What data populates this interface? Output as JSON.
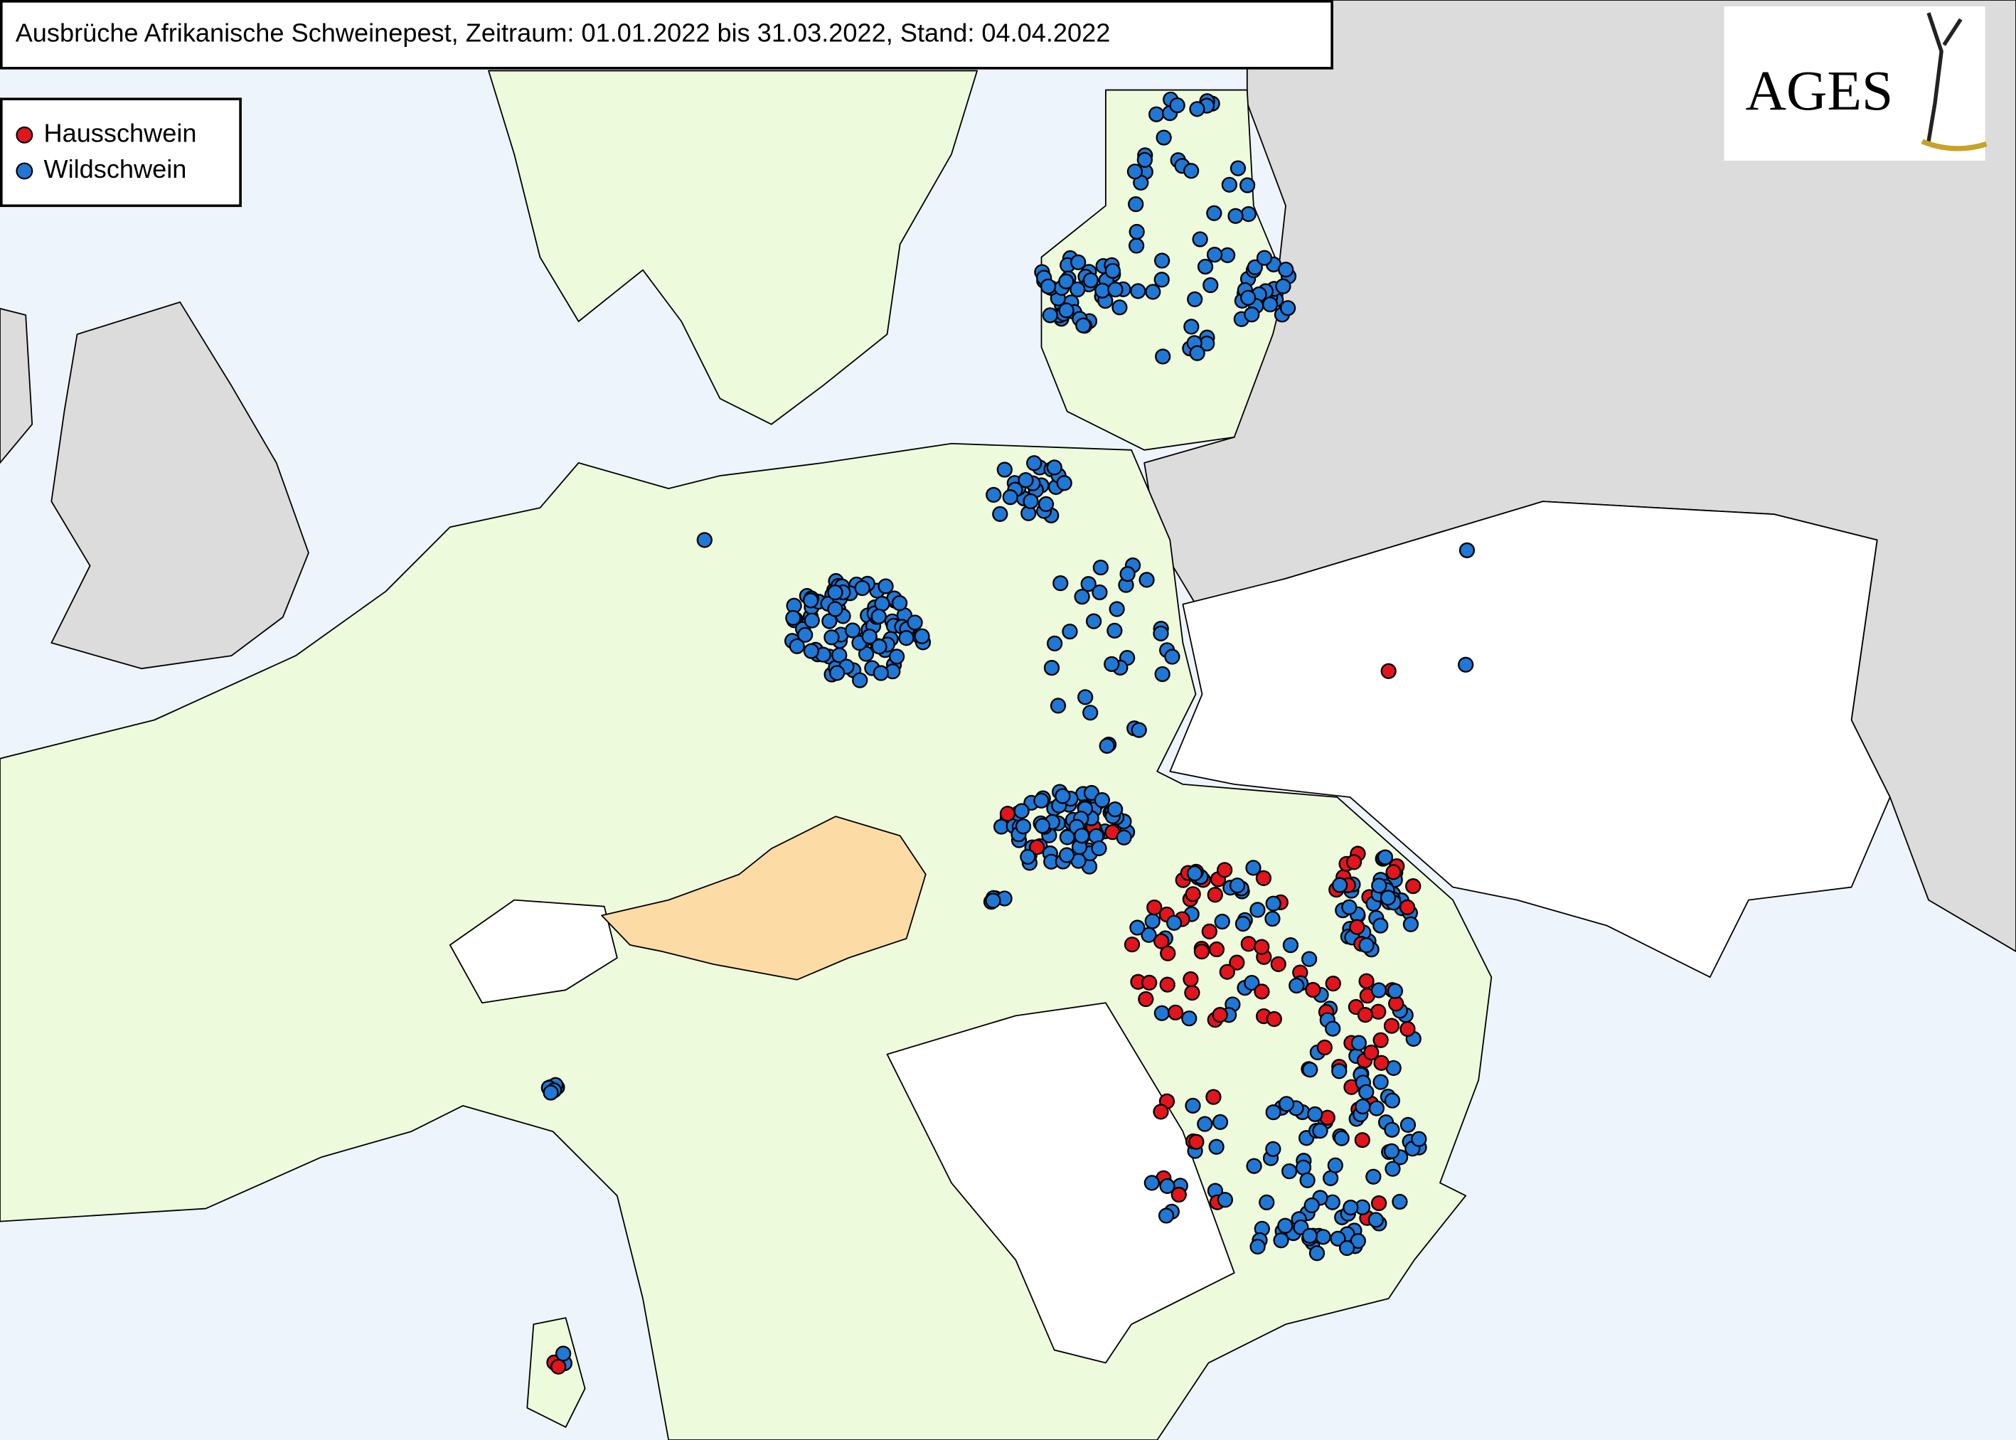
{
  "title": "Ausbrüche Afrikanische Schweinepest, Zeitraum: 01.01.2022 bis 31.03.2022, Stand: 04.04.2022",
  "legend": [
    {
      "label": "Hausschwein",
      "color": "#e3141c"
    },
    {
      "label": "Wildschwein",
      "color": "#1f78d6"
    }
  ],
  "logo": "AGES"
}
